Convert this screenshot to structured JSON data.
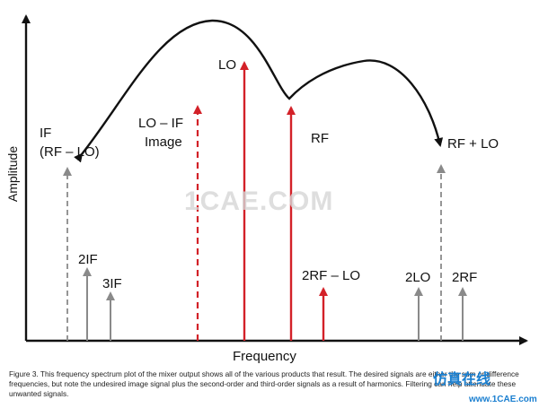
{
  "diagram": {
    "y_axis_label": "Amplitude",
    "x_axis_label": "Frequency",
    "labels": {
      "if_line1": "IF",
      "if_line2": "(RF – LO)",
      "lo": "LO",
      "lo_if_line1": "LO – IF",
      "lo_if_line2": "Image",
      "rf": "RF",
      "rf_plus_lo": "RF + LO",
      "two_if": "2IF",
      "three_if": "3IF",
      "two_rf_minus_lo": "2RF – LO",
      "two_lo": "2LO",
      "two_rf": "2RF"
    },
    "colors": {
      "red": "#d32128",
      "gray": "#8a8a8a",
      "axis": "#111111"
    }
  },
  "caption": "Figure 3. This frequency spectrum plot of the mixer output shows all of the various products that result. The desired signals are either the sum or difference frequencies, but note the undesired image signal plus the second-order and third-order signals as a result of harmonics. Filtering can help attenuate these unwanted signals.",
  "watermark": "1CAE.COM",
  "site_logo_text": "仿真在线",
  "site_url": "www.1CAE.com"
}
